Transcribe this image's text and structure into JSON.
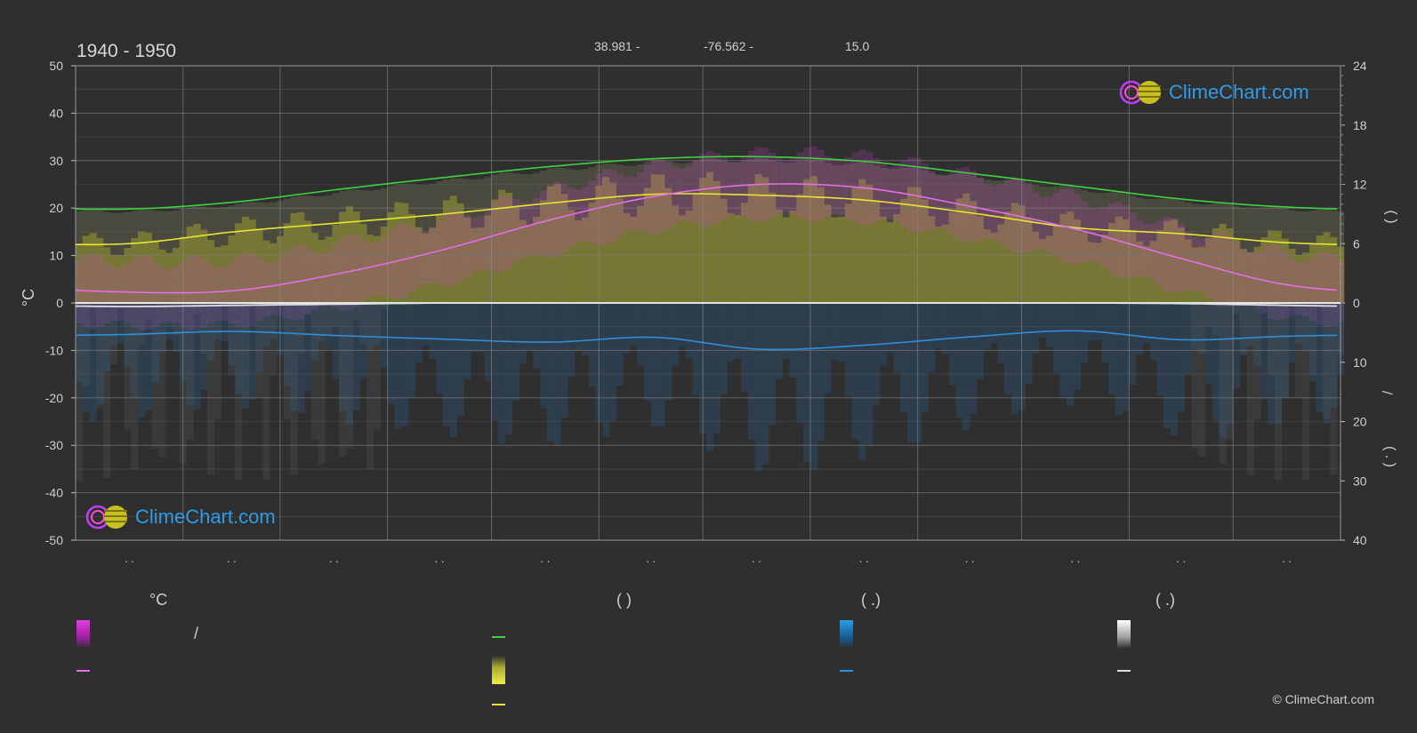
{
  "header": {
    "period": "1940 - 1950",
    "latitude": "38.981 -",
    "longitude": "-76.562 -",
    "elevation": "15.0"
  },
  "logo_text": "ClimeChart.com",
  "copyright": "© ClimeChart.com",
  "legend": {
    "col1_header": "°C",
    "col2_header": "(          )",
    "col3_header": "(   .)",
    "col4_header": "(   .)",
    "slash": "/"
  },
  "colors": {
    "background": "#2f2f2f",
    "daylight_line": "#3fd23f",
    "sunshine_line": "#e6e632",
    "temp_line": "#e66ee6",
    "precip_line": "#2f8fd8",
    "snow_line": "#e0e0e0",
    "sunshine_fill": "#9a9a30",
    "temp_fill": "#cc44cc",
    "precip_fill": "#2a5a80"
  },
  "chart_data": {
    "type": "area",
    "x": [
      1,
      2,
      3,
      4,
      5,
      6,
      7,
      8,
      9,
      10,
      11,
      12
    ],
    "x_tick_labels": [
      ". .",
      ". .",
      ". .",
      ". .",
      ". .",
      ". .",
      ". .",
      ". .",
      ". .",
      ". .",
      ". .",
      ". ."
    ],
    "left_axis": {
      "label": "°C",
      "ylim": [
        -50,
        50
      ],
      "ticks": [
        50,
        40,
        30,
        20,
        10,
        0,
        -10,
        -20,
        -30,
        -40,
        -50
      ]
    },
    "right_axis_top": {
      "ylim": [
        0,
        24
      ],
      "ticks": [
        24,
        18,
        12,
        6,
        0
      ]
    },
    "right_axis_bottom": {
      "ylim": [
        0,
        40
      ],
      "ticks": [
        0,
        10,
        20,
        30,
        40
      ]
    },
    "right_axis_labels": [
      "(      )",
      "/",
      "(  .   )"
    ],
    "grid": true,
    "series": [
      {
        "values": [
          9.5,
          10.2,
          11.5,
          12.7,
          13.8,
          14.6,
          14.8,
          14.3,
          13.1,
          11.8,
          10.5,
          9.7
        ]
      },
      {
        "values": [
          6.0,
          7.2,
          8.1,
          9.0,
          10.1,
          11.0,
          10.9,
          10.4,
          9.1,
          7.6,
          7.0,
          6.1
        ]
      },
      {
        "values": [
          2.3,
          2.6,
          6.2,
          11.3,
          17.5,
          22.5,
          25.0,
          24.2,
          20.3,
          15.5,
          9.3,
          3.8
        ]
      },
      {
        "values": [
          5.3,
          4.8,
          5.5,
          6.1,
          6.6,
          5.8,
          7.8,
          7.1,
          5.7,
          4.7,
          6.2,
          5.6
        ]
      },
      {
        "values": [
          0.6,
          0.4,
          0.2,
          0.0,
          0.0,
          0.0,
          0.0,
          0.0,
          0.0,
          0.0,
          0.1,
          0.4
        ]
      }
    ]
  }
}
